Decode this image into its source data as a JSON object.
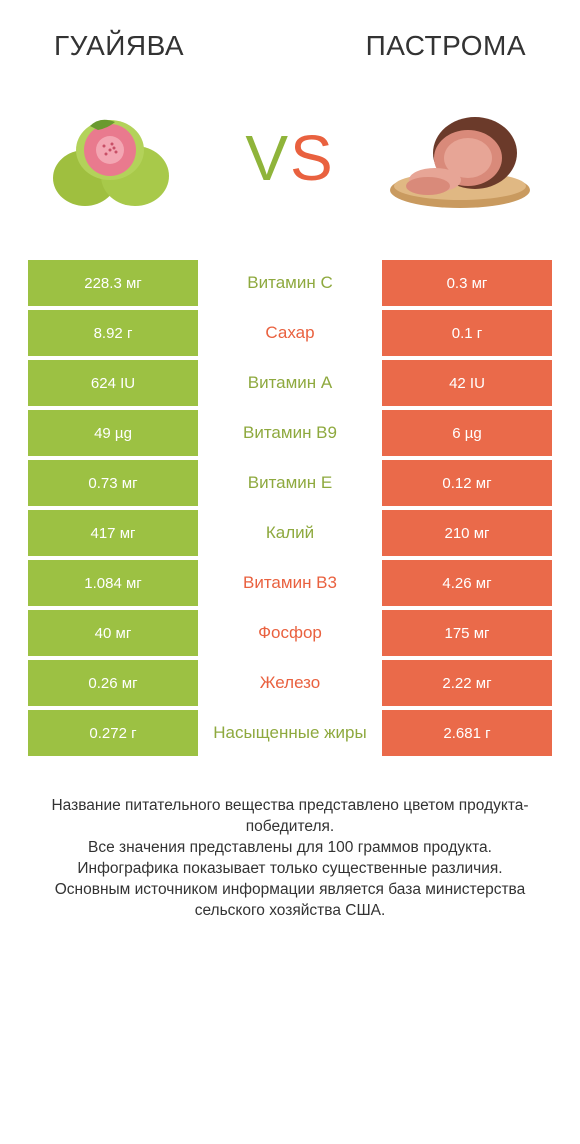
{
  "titles": {
    "left": "ГУАЙЯВА",
    "right": "ПАСТРОМА"
  },
  "colors": {
    "left_cell": "#9cc143",
    "right_cell": "#ea6a4a",
    "label_left_winner": "#8ea93e",
    "label_right_winner": "#e9613f",
    "title_text": "#333333"
  },
  "vs": {
    "v": "V",
    "s": "S"
  },
  "rows": [
    {
      "left": "228.3 мг",
      "label": "Витамин C",
      "right": "0.3 мг",
      "winner": "left"
    },
    {
      "left": "8.92 г",
      "label": "Сахар",
      "right": "0.1 г",
      "winner": "right"
    },
    {
      "left": "624 IU",
      "label": "Витамин A",
      "right": "42 IU",
      "winner": "left"
    },
    {
      "left": "49 µg",
      "label": "Витамин B9",
      "right": "6 µg",
      "winner": "left"
    },
    {
      "left": "0.73 мг",
      "label": "Витамин E",
      "right": "0.12 мг",
      "winner": "left"
    },
    {
      "left": "417 мг",
      "label": "Калий",
      "right": "210 мг",
      "winner": "left"
    },
    {
      "left": "1.084 мг",
      "label": "Витамин B3",
      "right": "4.26 мг",
      "winner": "right"
    },
    {
      "left": "40 мг",
      "label": "Фосфор",
      "right": "175 мг",
      "winner": "right"
    },
    {
      "left": "0.26 мг",
      "label": "Железо",
      "right": "2.22 мг",
      "winner": "right"
    },
    {
      "left": "0.272 г",
      "label": "Насыщенные жиры",
      "right": "2.681 г",
      "winner": "left"
    }
  ],
  "footer": "Название питательного вещества представлено цветом продукта-победителя.\nВсе значения представлены для 100 граммов продукта.\nИнфографика показывает только существенные различия.\nОсновным источником информации является база министерства сельского хозяйства США."
}
